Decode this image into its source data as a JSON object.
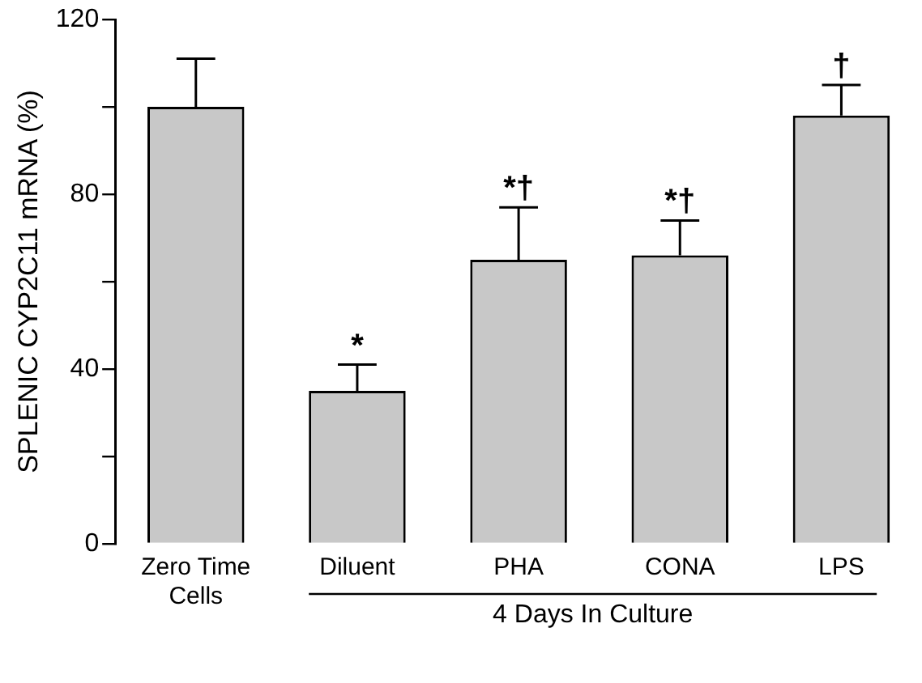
{
  "chart_data": {
    "type": "bar",
    "ylabel": "SPLENIC CYP2C11 mRNA (%)",
    "categories": [
      "Zero Time Cells",
      "Diluent",
      "PHA",
      "CONA",
      "LPS"
    ],
    "values": [
      100,
      35,
      65,
      66,
      98
    ],
    "color": "#c8c8c8",
    "errors": [
      [
        100,
        111
      ],
      [
        35,
        41
      ],
      [
        65,
        77
      ],
      [
        66,
        74
      ],
      [
        98,
        105
      ]
    ],
    "ylim": [
      0,
      120
    ],
    "yticks": [
      0,
      {
        "value": 20,
        "label": null
      },
      40,
      {
        "value": 60,
        "label": null
      },
      80,
      {
        "value": 100,
        "label": null
      },
      120
    ],
    "grid": false,
    "legend": false,
    "annotations": [
      {
        "text": "*",
        "x": "Diluent",
        "y": 41
      },
      {
        "text": "*†",
        "x": "PHA",
        "y": 77
      },
      {
        "text": "*†",
        "x": "CONA",
        "y": 74
      },
      {
        "text": "†",
        "x": "LPS",
        "y": 105
      },
      "4 Days In Culture"
    ]
  }
}
